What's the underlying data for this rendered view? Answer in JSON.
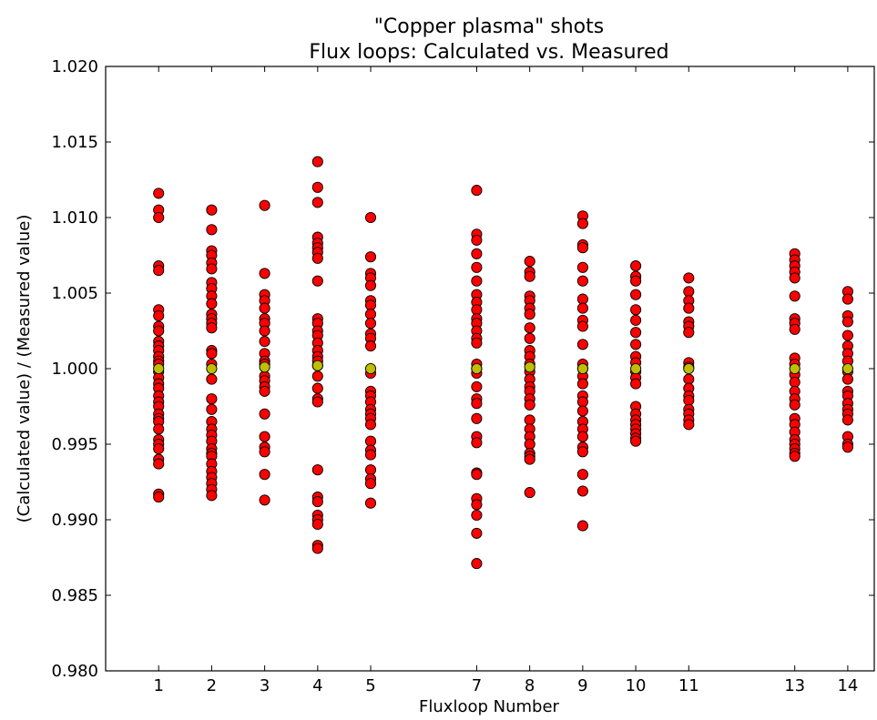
{
  "chart_data": {
    "type": "scatter",
    "title_lines": [
      "\"Copper plasma\" shots",
      "Flux loops: Calculated vs. Measured"
    ],
    "xlabel": "Fluxloop Number",
    "ylabel": "(Calculated value) / (Measured value)",
    "xlim": [
      0,
      14.5
    ],
    "ylim": [
      0.98,
      1.02
    ],
    "xticks": [
      1,
      2,
      3,
      4,
      5,
      7,
      8,
      9,
      10,
      11,
      13,
      14
    ],
    "yticks": [
      0.98,
      0.985,
      0.99,
      0.995,
      1.0,
      1.005,
      1.01,
      1.015,
      1.02
    ],
    "ytick_labels": [
      "0.980",
      "0.985",
      "0.990",
      "0.995",
      "1.000",
      "1.005",
      "1.010",
      "1.015",
      "1.020"
    ],
    "grid": false,
    "series": [
      {
        "color": "#ff0000",
        "points": [
          {
            "x": 1,
            "y": [
              1.0116,
              1.0105,
              1.01,
              1.0068,
              1.0065,
              1.0039,
              1.0035,
              1.0028,
              1.0025,
              1.0018,
              1.0015,
              1.0012,
              1.0008,
              1.0005,
              1.0003,
              0.9998,
              0.9994,
              0.999,
              0.9987,
              0.9982,
              0.9978,
              0.9975,
              0.997,
              0.9967,
              0.9965,
              0.996,
              0.9953,
              0.995,
              0.9947,
              0.994,
              0.9937,
              0.9917,
              0.9915
            ]
          },
          {
            "x": 2,
            "y": [
              1.0105,
              1.0092,
              1.0078,
              1.0075,
              1.007,
              1.0066,
              1.0057,
              1.0053,
              1.0048,
              1.0043,
              1.0036,
              1.0033,
              1.003,
              1.0027,
              1.0012,
              1.001,
              1.0003,
              0.9993,
              0.998,
              0.9973,
              0.9965,
              0.996,
              0.9956,
              0.9952,
              0.9947,
              0.9944,
              0.9942,
              0.9937,
              0.9932,
              0.9928,
              0.9924,
              0.992,
              0.9916
            ]
          },
          {
            "x": 3,
            "y": [
              1.0108,
              1.0063,
              1.0049,
              1.0045,
              1.004,
              1.0033,
              1.003,
              1.0025,
              1.0018,
              1.001,
              1.0005,
              1.0003,
              0.9995,
              0.9992,
              0.9988,
              0.9985,
              0.997,
              0.9955,
              0.9948,
              0.9945,
              0.993,
              0.9913
            ]
          },
          {
            "x": 4,
            "y": [
              1.0137,
              1.012,
              1.011,
              1.0087,
              1.0083,
              1.008,
              1.0077,
              1.0073,
              1.0058,
              1.0033,
              1.003,
              1.0025,
              1.0022,
              1.0017,
              1.0012,
              1.0008,
              1.0005,
              1.0002,
              0.9995,
              0.9987,
              0.998,
              0.9978,
              0.9933,
              0.9915,
              0.9912,
              0.9903,
              0.99,
              0.9897,
              0.9883,
              0.9881
            ]
          },
          {
            "x": 5,
            "y": [
              1.01,
              1.0074,
              1.0063,
              1.006,
              1.0055,
              1.0045,
              1.0042,
              1.0036,
              1.003,
              1.0023,
              1.002,
              1.0015,
              0.9997,
              0.9985,
              0.9982,
              0.9978,
              0.9973,
              0.997,
              0.9967,
              0.9963,
              0.9952,
              0.9946,
              0.9943,
              0.9933,
              0.9927,
              0.9924,
              0.9911
            ]
          },
          {
            "x": 7,
            "y": [
              1.0118,
              1.0089,
              1.0085,
              1.0076,
              1.0067,
              1.0058,
              1.0049,
              1.0044,
              1.0039,
              1.0033,
              1.003,
              1.0025,
              1.002,
              1.0017,
              1.0003,
              1.0,
              0.9997,
              0.9988,
              0.998,
              0.9977,
              0.9967,
              0.9955,
              0.9951,
              0.9931,
              0.993,
              0.9914,
              0.991,
              0.9903,
              0.9891,
              0.9871
            ]
          },
          {
            "x": 8,
            "y": [
              1.0071,
              1.0064,
              1.0061,
              1.0048,
              1.0045,
              1.004,
              1.0036,
              1.0027,
              1.002,
              1.0012,
              1.0008,
              1.0003,
              0.9998,
              0.9993,
              0.9988,
              0.9985,
              0.998,
              0.9976,
              0.9966,
              0.996,
              0.9955,
              0.995,
              0.9944,
              0.9942,
              0.994,
              0.9918
            ]
          },
          {
            "x": 9,
            "y": [
              1.0101,
              1.0096,
              1.0082,
              1.008,
              1.0067,
              1.0058,
              1.0046,
              1.004,
              1.0032,
              1.0028,
              1.0016,
              1.0003,
              1.0,
              0.9995,
              0.999,
              0.9982,
              0.9978,
              0.9972,
              0.9965,
              0.996,
              0.9955,
              0.9948,
              0.9945,
              0.993,
              0.9919,
              0.9896
            ]
          },
          {
            "x": 10,
            "y": [
              1.0068,
              1.0061,
              1.0058,
              1.0049,
              1.0039,
              1.0032,
              1.0024,
              1.0016,
              1.0008,
              1.0004,
              0.9998,
              0.9994,
              0.999,
              0.9975,
              0.997,
              0.9966,
              0.9963,
              0.996,
              0.9957,
              0.9954,
              0.9952
            ]
          },
          {
            "x": 11,
            "y": [
              1.006,
              1.0051,
              1.0045,
              1.004,
              1.0031,
              1.0028,
              1.0024,
              1.0004,
              1.0001,
              0.9993,
              0.9987,
              0.9982,
              0.9979,
              0.9973,
              0.997,
              0.9966,
              0.9963
            ]
          },
          {
            "x": 13,
            "y": [
              1.0076,
              1.0072,
              1.0068,
              1.0064,
              1.006,
              1.0048,
              1.0033,
              1.003,
              1.0026,
              1.0007,
              1.0003,
              0.9996,
              0.9991,
              0.9985,
              0.998,
              0.9976,
              0.9967,
              0.9963,
              0.9958,
              0.9953,
              0.995,
              0.9947,
              0.9944,
              0.9942
            ]
          },
          {
            "x": 14,
            "y": [
              1.0051,
              1.0046,
              1.0035,
              1.0031,
              1.0022,
              1.0015,
              1.001,
              1.0005,
              0.9998,
              0.9993,
              0.9985,
              0.9982,
              0.9977,
              0.9973,
              0.997,
              0.9966,
              0.9955,
              0.995,
              0.9948
            ]
          }
        ]
      },
      {
        "color": "#bfbf00",
        "points": [
          {
            "x": 1,
            "y": [
              1.0
            ]
          },
          {
            "x": 2,
            "y": [
              1.0
            ]
          },
          {
            "x": 3,
            "y": [
              1.0001
            ]
          },
          {
            "x": 4,
            "y": [
              1.0002
            ]
          },
          {
            "x": 5,
            "y": [
              1.0
            ]
          },
          {
            "x": 7,
            "y": [
              1.0
            ]
          },
          {
            "x": 8,
            "y": [
              1.0001
            ]
          },
          {
            "x": 9,
            "y": [
              1.0
            ]
          },
          {
            "x": 10,
            "y": [
              1.0
            ]
          },
          {
            "x": 11,
            "y": [
              1.0
            ]
          },
          {
            "x": 13,
            "y": [
              1.0
            ]
          },
          {
            "x": 14,
            "y": [
              1.0
            ]
          }
        ]
      }
    ]
  }
}
